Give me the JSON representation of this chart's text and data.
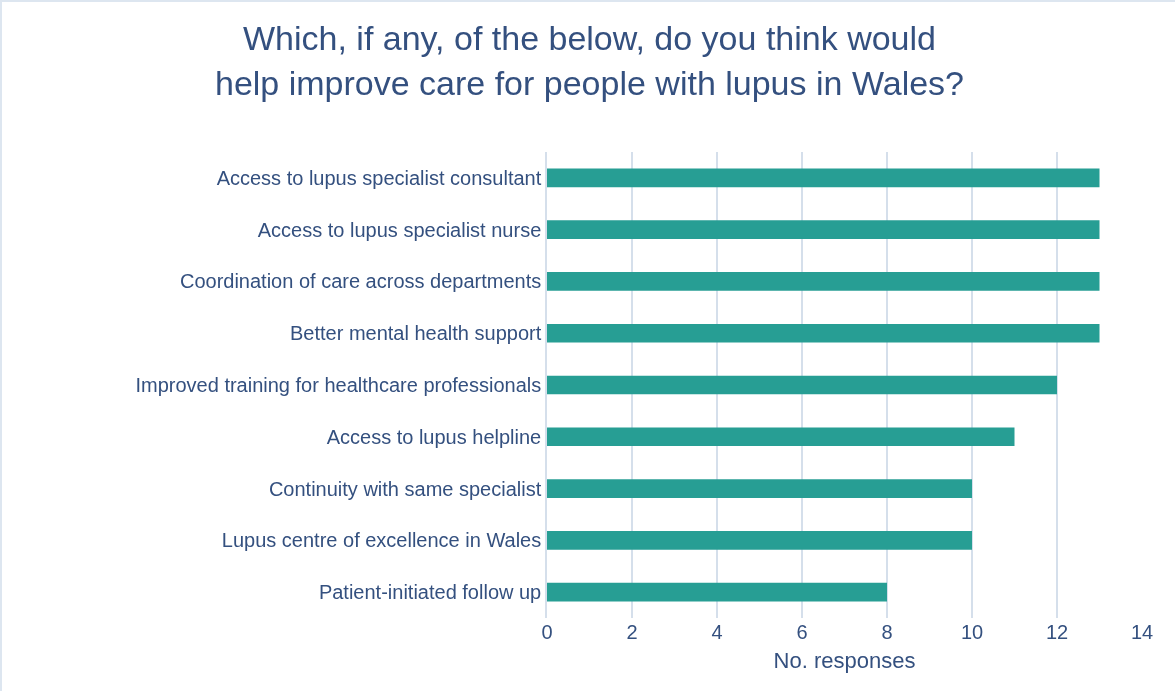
{
  "chart_data": {
    "type": "bar",
    "orientation": "horizontal",
    "title": "Which, if any, of the below, do you think would help improve care for people with lupus in Wales?",
    "xlabel": "No. responses",
    "categories": [
      "Access to lupus specialist consultant",
      "Access to lupus specialist nurse",
      "Coordination of care across departments",
      "Better mental health support",
      "Improved training for healthcare professionals",
      "Access to lupus helpline",
      "Continuity with same specialist",
      "Lupus centre of excellence in Wales",
      "Patient-initiated follow up"
    ],
    "values": [
      13,
      13,
      13,
      13,
      12,
      11,
      10,
      10,
      8
    ],
    "color": "#279e94",
    "xlim": [
      0,
      14
    ],
    "xticks": [
      0,
      2,
      4,
      6,
      8,
      10,
      12,
      14
    ],
    "grid": "x"
  }
}
